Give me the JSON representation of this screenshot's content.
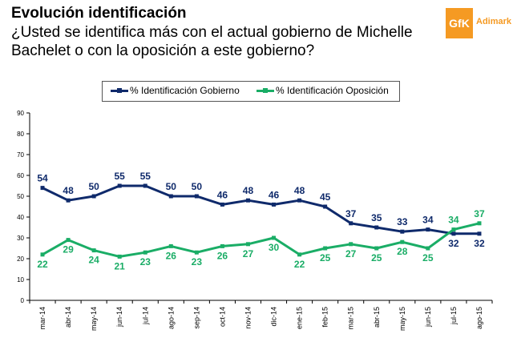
{
  "header": {
    "title": "Evolución identificación",
    "question": "¿Usted se identifica más con el actual gobierno de Michelle Bachelet o con la oposición a este gobierno?"
  },
  "logo": {
    "mark": "GfK",
    "brand": "Adimark"
  },
  "colors": {
    "gobierno": "#0f2a6b",
    "oposicion": "#1aad66",
    "brand": "#f59a23"
  },
  "chart_data": {
    "type": "line",
    "title": "Evolución identificación",
    "xlabel": "",
    "ylabel": "",
    "ylim": [
      0,
      90
    ],
    "yticks": [
      0,
      10,
      20,
      30,
      40,
      50,
      60,
      70,
      80,
      90
    ],
    "grid": false,
    "legend_position": "top",
    "categories": [
      "mar-14",
      "abr-14",
      "may-14",
      "jun-14",
      "jul-14",
      "ago-14",
      "sep-14",
      "oct-14",
      "nov-14",
      "dic-14",
      "ene-15",
      "feb-15",
      "mar-15",
      "abr-15",
      "may-15",
      "jun-15",
      "jul-15",
      "ago-15"
    ],
    "series": [
      {
        "name": "% Identificación Gobierno",
        "color": "#0f2a6b",
        "values": [
          54,
          48,
          50,
          55,
          55,
          50,
          50,
          46,
          48,
          46,
          48,
          45,
          37,
          35,
          33,
          34,
          32,
          32
        ],
        "labels": [
          "54",
          "48",
          "50",
          "55",
          "55",
          "50",
          "50",
          "46",
          "48",
          "46",
          "48",
          "45",
          "37",
          "35",
          "33",
          "34",
          "32",
          "32"
        ]
      },
      {
        "name": "% Identificación Oposición",
        "color": "#1aad66",
        "values": [
          22,
          29,
          24,
          21,
          23,
          26,
          23,
          26,
          27,
          30,
          22,
          25,
          27,
          25,
          28,
          25,
          34,
          37
        ],
        "labels": [
          "22",
          "29",
          "24",
          "21",
          "23",
          "26",
          "23",
          "26",
          "27",
          "30",
          "22",
          "25",
          "27",
          "25",
          "28",
          "25",
          "34",
          "37"
        ]
      }
    ]
  }
}
